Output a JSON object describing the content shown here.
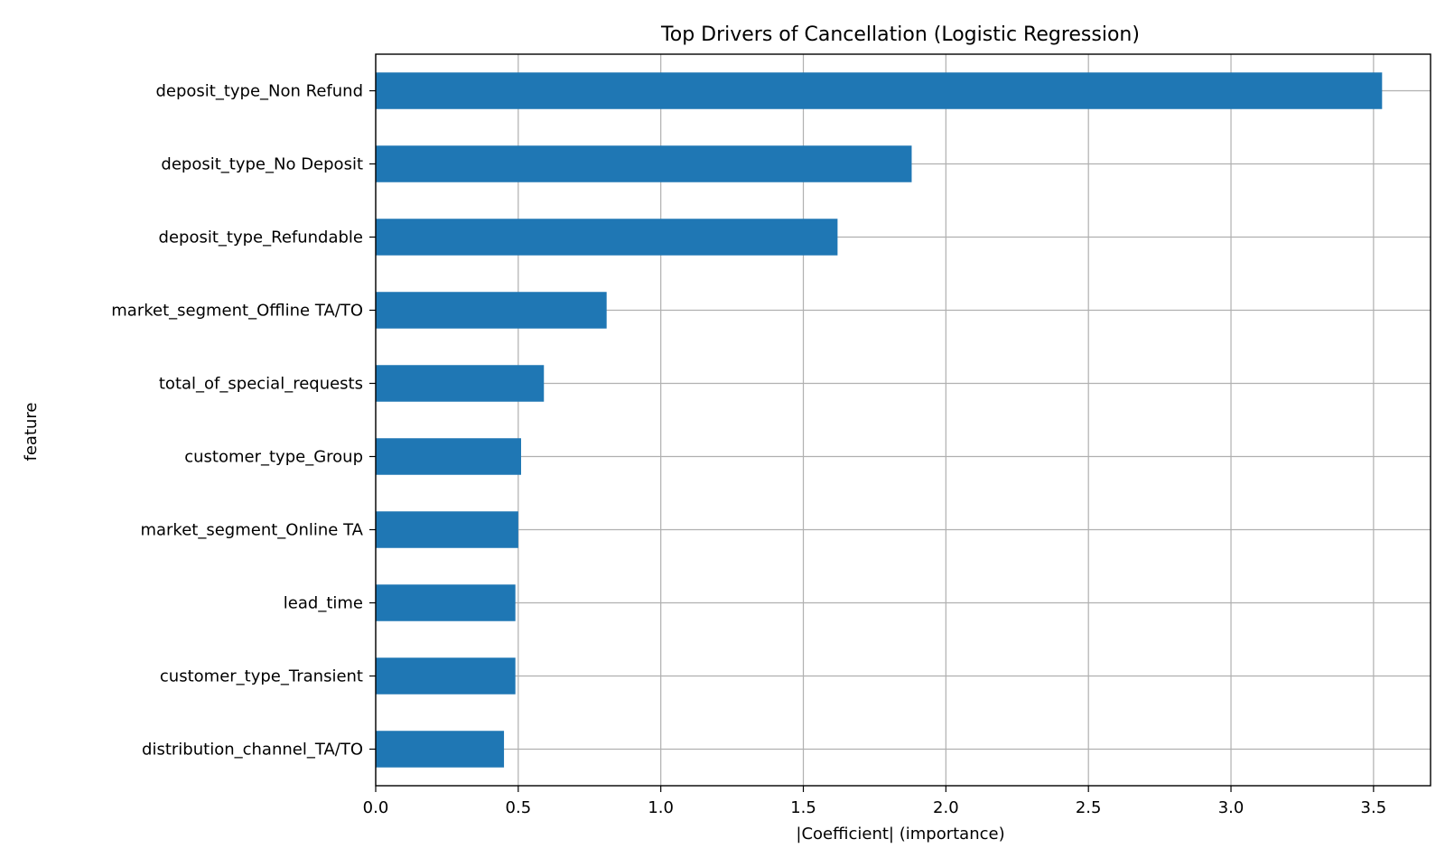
{
  "chart_data": {
    "type": "bar",
    "orientation": "horizontal",
    "title": "Top Drivers of Cancellation (Logistic Regression)",
    "xlabel": "|Coefficient| (importance)",
    "ylabel": "feature",
    "xlim": [
      0,
      3.7
    ],
    "xticks": [
      "0.0",
      "0.5",
      "1.0",
      "1.5",
      "2.0",
      "2.5",
      "3.0",
      "3.5"
    ],
    "grid": true,
    "bar_color": "#1f77b4",
    "categories": [
      "deposit_type_Non Refund",
      "deposit_type_No Deposit",
      "deposit_type_Refundable",
      "market_segment_Offline TA/TO",
      "total_of_special_requests",
      "customer_type_Group",
      "market_segment_Online TA",
      "lead_time",
      "customer_type_Transient",
      "distribution_channel_TA/TO"
    ],
    "values": [
      3.53,
      1.88,
      1.62,
      0.81,
      0.59,
      0.51,
      0.5,
      0.49,
      0.49,
      0.45
    ]
  }
}
